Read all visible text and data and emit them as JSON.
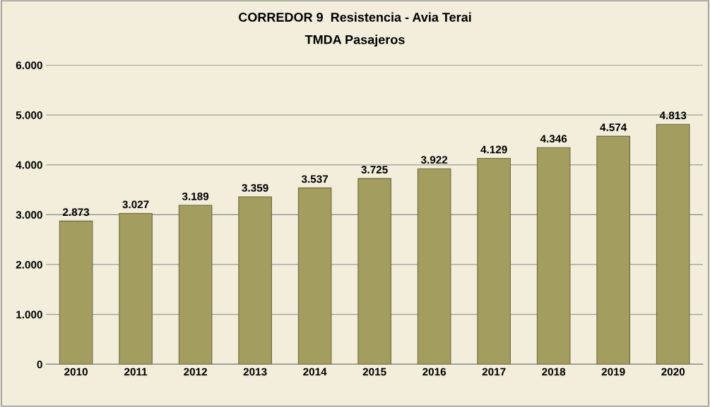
{
  "chart_data": {
    "type": "bar",
    "title": "CORREDOR 9  Resistencia - Avia Terai",
    "subtitle": "TMDA Pasajeros",
    "categories": [
      "2010",
      "2011",
      "2012",
      "2013",
      "2014",
      "2015",
      "2016",
      "2017",
      "2018",
      "2019",
      "2020"
    ],
    "values": [
      2873,
      3027,
      3189,
      3359,
      3537,
      3725,
      3922,
      4129,
      4346,
      4574,
      4813
    ],
    "value_labels": [
      "2.873",
      "3.027",
      "3.189",
      "3.359",
      "3.537",
      "3.725",
      "3.922",
      "4.129",
      "4.346",
      "4.574",
      "4.813"
    ],
    "color": "#a39d5f",
    "ylim": [
      0,
      6000
    ],
    "yticks": [
      0,
      {
        "value": 1000,
        "label": "1.000"
      },
      {
        "value": 2000,
        "label": "2.000"
      },
      {
        "value": 3000,
        "label": "3.000"
      },
      {
        "value": 4000,
        "label": "4.000"
      },
      {
        "value": 5000,
        "label": "5.000"
      },
      {
        "value": 6000,
        "label": "6.000"
      }
    ],
    "grid": "y"
  }
}
